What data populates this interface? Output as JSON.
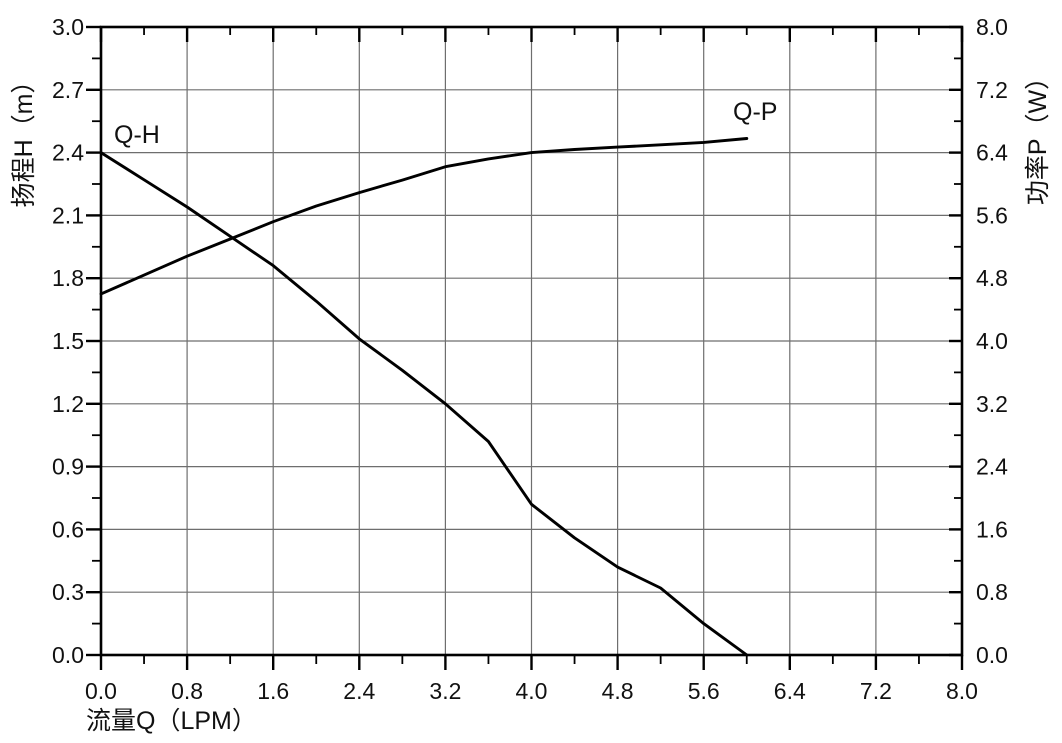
{
  "chart_data": {
    "type": "line",
    "title": "",
    "xlabel": "流量Q（LPM）",
    "ylabel_left": "扬程H（m）",
    "ylabel_right": "功率P（W）",
    "xlim": [
      0.0,
      8.0
    ],
    "ylim_left": [
      0.0,
      3.0
    ],
    "ylim_right": [
      0.0,
      8.0
    ],
    "x_major_step": 0.8,
    "x_minor_step": 0.4,
    "y_left_major_step": 0.3,
    "y_left_minor_step": 0.15,
    "y_right_major_step": 0.8,
    "y_right_minor_step": 0.4,
    "x_tick_labels": [
      "0.0",
      "0.8",
      "1.6",
      "2.4",
      "3.2",
      "4.0",
      "4.8",
      "5.6",
      "6.4",
      "7.2",
      "8.0"
    ],
    "y_left_tick_labels": [
      "3.0",
      "2.7",
      "2.4",
      "2.1",
      "1.8",
      "1.5",
      "1.2",
      "0.9",
      "0.6",
      "0.3",
      "0.0"
    ],
    "y_right_tick_labels": [
      "8.0",
      "7.2",
      "6.4",
      "5.6",
      "4.8",
      "4.0",
      "3.2",
      "2.4",
      "1.6",
      "0.8",
      "0.0"
    ],
    "grid": true,
    "legend_position": "inline-curve-labels",
    "series": [
      {
        "name": "Q-H",
        "label": "Q-H",
        "axis": "left",
        "x": [
          0.0,
          0.4,
          0.8,
          1.2,
          1.6,
          2.0,
          2.4,
          2.8,
          3.2,
          3.6,
          4.0,
          4.4,
          4.8,
          5.2,
          5.6,
          6.0
        ],
        "y": [
          2.4,
          2.27,
          2.14,
          2.0,
          1.86,
          1.69,
          1.51,
          1.36,
          1.2,
          1.02,
          0.72,
          0.56,
          0.42,
          0.32,
          0.15,
          0.0
        ]
      },
      {
        "name": "Q-P",
        "label": "Q-P",
        "axis": "right",
        "x": [
          0.0,
          0.4,
          0.8,
          1.2,
          1.6,
          2.0,
          2.4,
          2.8,
          3.2,
          3.6,
          4.0,
          4.4,
          4.8,
          5.2,
          5.6,
          6.0
        ],
        "y": [
          4.6,
          4.84,
          5.08,
          5.3,
          5.52,
          5.72,
          5.89,
          6.05,
          6.22,
          6.32,
          6.4,
          6.44,
          6.47,
          6.5,
          6.53,
          6.58
        ]
      }
    ],
    "colors": {
      "curve": "#000000",
      "grid": "#6e6e6e",
      "frame": "#000000",
      "text": "#111111",
      "background": "#ffffff"
    }
  }
}
